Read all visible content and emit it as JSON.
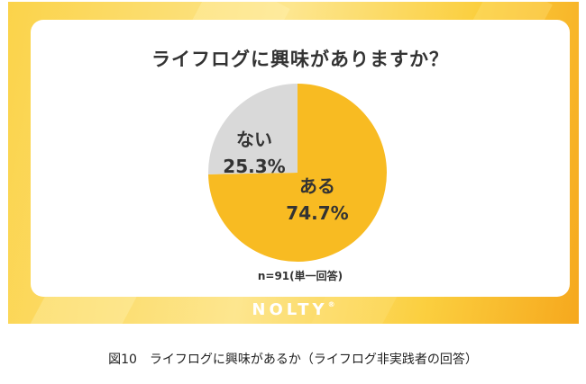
{
  "title": "ライフログに興味がありますか？",
  "sample_note": "n=91(単一回答)",
  "brand": "NOLTY",
  "brand_mark": "®",
  "caption": "図10　ライフログに興味があるか（ライフログ非実践者の回答）",
  "colors": {
    "primary": "#f8bb22",
    "secondary": "#d9d9d9",
    "text": "#333333"
  },
  "chart_data": {
    "type": "pie",
    "title": "ライフログに興味がありますか？",
    "slices": [
      {
        "label": "ある",
        "value": 74.7,
        "value_label": "74.7%",
        "color": "#f8bb22"
      },
      {
        "label": "ない",
        "value": 25.3,
        "value_label": "25.3%",
        "color": "#d9d9d9"
      }
    ],
    "annotation": "n=91(単一回答)"
  }
}
